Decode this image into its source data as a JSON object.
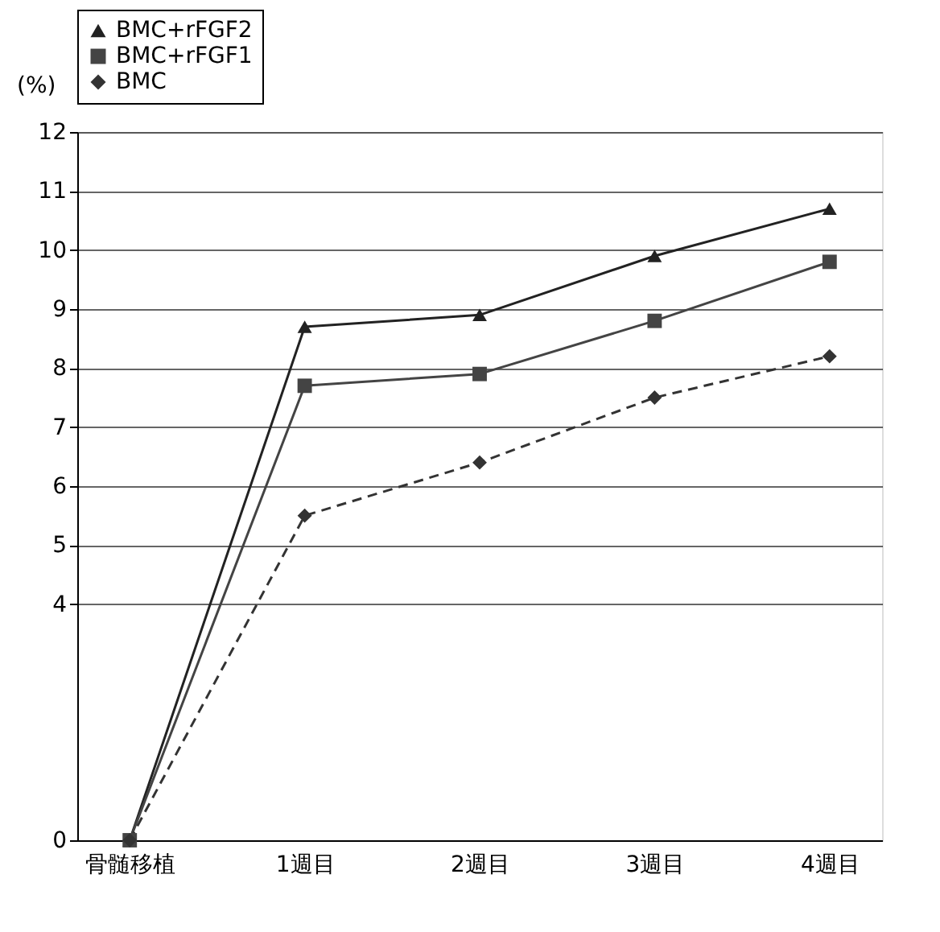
{
  "chart_data": {
    "type": "line",
    "ylabel": "(%)",
    "categories": [
      "骨髄移植",
      "1週目",
      "2週目",
      "3週目",
      "4週目"
    ],
    "series": [
      {
        "name": "BMC+rFGF2",
        "color": "#222222",
        "values": [
          0,
          8.7,
          8.9,
          9.9,
          10.7
        ],
        "marker": "triangle",
        "line_style": "solid"
      },
      {
        "name": "BMC+rFGF1",
        "color": "#444444",
        "values": [
          0,
          7.7,
          7.9,
          8.8,
          9.8
        ],
        "marker": "square",
        "line_style": "solid"
      },
      {
        "name": "BMC",
        "color": "#333333",
        "values": [
          0,
          5.5,
          6.4,
          7.5,
          8.2
        ],
        "marker": "diamond",
        "line_style": "dashed"
      }
    ],
    "ylim": [
      0,
      12
    ],
    "yticks": [
      0,
      4,
      5,
      6,
      7,
      8,
      9,
      10,
      11,
      12
    ],
    "grid": "y",
    "legend": "top"
  }
}
